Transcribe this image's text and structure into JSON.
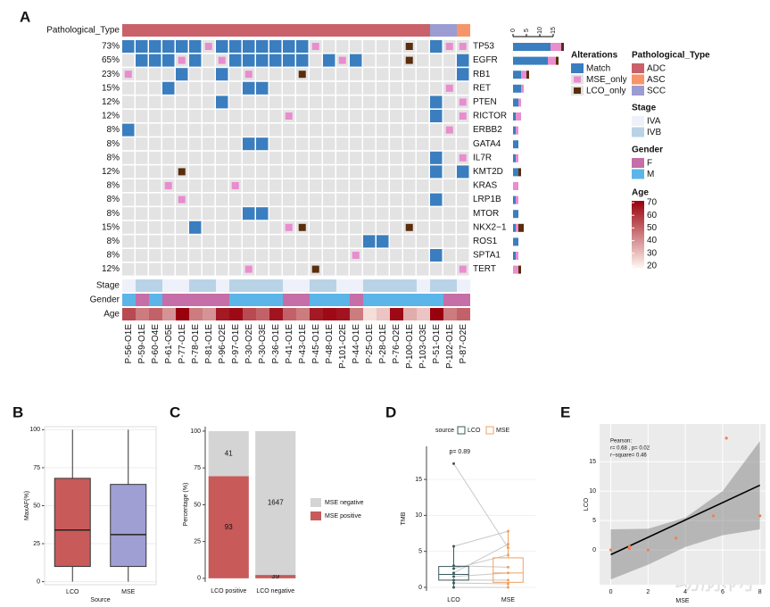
{
  "chart_data": [
    {
      "type": "oncoprint",
      "label": "A",
      "samples": [
        "P-56-O1E",
        "P-59-O1E",
        "P-60-O4E",
        "P-61-O5E",
        "P-77-O1E",
        "P-78-O1E",
        "P-81-O1E",
        "P-96-O2E",
        "P-97-O1E",
        "P-30-O2E",
        "P-30-O3E",
        "P-36-O1E",
        "P-41-O1E",
        "P-43-O1E",
        "P-45-O1E",
        "P-48-O1E",
        "P-101-O2E",
        "P-44-O1E",
        "P-25-O1E",
        "P-28-O1E",
        "P-76-O2E",
        "P-100-O1E",
        "P-103-O3E",
        "P-51-O1E",
        "P-102-O1E",
        "P-87-O2E"
      ],
      "genes": [
        "TP53",
        "EGFR",
        "RB1",
        "RET",
        "PTEN",
        "RICTOR",
        "ERBB2",
        "GATA4",
        "IL7R",
        "KMT2D",
        "KRAS",
        "LRP1B",
        "MTOR",
        "NKX2−1",
        "ROS1",
        "SPTA1",
        "TERT"
      ],
      "percentages": [
        "73%",
        "65%",
        "23%",
        "15%",
        "12%",
        "12%",
        "8%",
        "8%",
        "8%",
        "12%",
        "8%",
        "8%",
        "8%",
        "15%",
        "8%",
        "8%",
        "12%"
      ],
      "legend_title": "Alterations",
      "alteration_types": [
        "Match",
        "MSE_only",
        "LCO_only"
      ],
      "alteration_colors": [
        "#3a7ebf",
        "#e98dcf",
        "#5a2d0c"
      ],
      "matrix": [
        [
          "Match",
          "Match",
          "Match",
          "Match",
          "Match",
          "Match",
          "MSE_only",
          "Match",
          "Match",
          "Match",
          "Match",
          "Match",
          "Match",
          "Match",
          "MSE_only",
          null,
          null,
          null,
          null,
          null,
          null,
          "LCO_only",
          null,
          "Match",
          "MSE_only",
          "MSE_only"
        ],
        [
          null,
          "Match",
          "Match",
          "Match",
          "MSE_only",
          "Match",
          null,
          "MSE_only",
          "Match",
          "Match",
          "Match",
          "Match",
          "Match",
          "Match",
          null,
          "Match",
          "MSE_only",
          "Match",
          null,
          null,
          null,
          "LCO_only",
          null,
          null,
          null,
          "Match"
        ],
        [
          "MSE_only",
          null,
          null,
          null,
          "Match",
          null,
          null,
          "Match",
          null,
          "MSE_only",
          null,
          null,
          null,
          "LCO_only",
          null,
          null,
          null,
          null,
          null,
          null,
          null,
          null,
          null,
          null,
          null,
          "Match"
        ],
        [
          null,
          null,
          null,
          "Match",
          null,
          null,
          null,
          null,
          null,
          "Match",
          "Match",
          null,
          null,
          null,
          null,
          null,
          null,
          null,
          null,
          null,
          null,
          null,
          null,
          null,
          "MSE_only",
          null
        ],
        [
          null,
          null,
          null,
          null,
          null,
          null,
          null,
          "Match",
          null,
          null,
          null,
          null,
          null,
          null,
          null,
          null,
          null,
          null,
          null,
          null,
          null,
          null,
          null,
          "Match",
          null,
          "MSE_only"
        ],
        [
          null,
          null,
          null,
          null,
          null,
          null,
          null,
          null,
          null,
          null,
          null,
          null,
          "MSE_only",
          null,
          null,
          null,
          null,
          null,
          null,
          null,
          null,
          null,
          null,
          "Match",
          null,
          "MSE_only"
        ],
        [
          "Match",
          null,
          null,
          null,
          null,
          null,
          null,
          null,
          null,
          null,
          null,
          null,
          null,
          null,
          null,
          null,
          null,
          null,
          null,
          null,
          null,
          null,
          null,
          null,
          "MSE_only",
          null
        ],
        [
          null,
          null,
          null,
          null,
          null,
          null,
          null,
          null,
          null,
          "Match",
          "Match",
          null,
          null,
          null,
          null,
          null,
          null,
          null,
          null,
          null,
          null,
          null,
          null,
          null,
          null,
          null
        ],
        [
          null,
          null,
          null,
          null,
          null,
          null,
          null,
          null,
          null,
          null,
          null,
          null,
          null,
          null,
          null,
          null,
          null,
          null,
          null,
          null,
          null,
          null,
          null,
          "Match",
          null,
          "MSE_only"
        ],
        [
          null,
          null,
          null,
          null,
          "LCO_only",
          null,
          null,
          null,
          null,
          null,
          null,
          null,
          null,
          null,
          null,
          null,
          null,
          null,
          null,
          null,
          null,
          null,
          null,
          "Match",
          null,
          "Match"
        ],
        [
          null,
          null,
          null,
          "MSE_only",
          null,
          null,
          null,
          null,
          "MSE_only",
          null,
          null,
          null,
          null,
          null,
          null,
          null,
          null,
          null,
          null,
          null,
          null,
          null,
          null,
          null,
          null,
          null
        ],
        [
          null,
          null,
          null,
          null,
          "MSE_only",
          null,
          null,
          null,
          null,
          null,
          null,
          null,
          null,
          null,
          null,
          null,
          null,
          null,
          null,
          null,
          null,
          null,
          null,
          "Match",
          null,
          null
        ],
        [
          null,
          null,
          null,
          null,
          null,
          null,
          null,
          null,
          null,
          "Match",
          "Match",
          null,
          null,
          null,
          null,
          null,
          null,
          null,
          null,
          null,
          null,
          null,
          null,
          null,
          null,
          null
        ],
        [
          null,
          null,
          null,
          null,
          null,
          "Match",
          null,
          null,
          null,
          null,
          null,
          null,
          "MSE_only",
          "LCO_only",
          null,
          null,
          null,
          null,
          null,
          null,
          null,
          "LCO_only",
          null,
          null,
          null,
          null
        ],
        [
          null,
          null,
          null,
          null,
          null,
          null,
          null,
          null,
          null,
          null,
          null,
          null,
          null,
          null,
          null,
          null,
          null,
          null,
          "Match",
          "Match",
          null,
          null,
          null,
          null,
          null,
          null
        ],
        [
          null,
          null,
          null,
          null,
          null,
          null,
          null,
          null,
          null,
          null,
          null,
          null,
          null,
          null,
          null,
          null,
          null,
          "MSE_only",
          null,
          null,
          null,
          null,
          null,
          "Match",
          null,
          null
        ],
        [
          null,
          null,
          null,
          null,
          null,
          null,
          null,
          null,
          null,
          "MSE_only",
          null,
          null,
          null,
          null,
          "LCO_only",
          null,
          null,
          null,
          null,
          null,
          null,
          null,
          null,
          null,
          null,
          "MSE_only"
        ]
      ],
      "xticks": [
        0,
        5,
        10,
        15
      ],
      "tracks": [
        {
          "name": "Pathological_Type",
          "levels": [
            "ADC",
            "ASC",
            "SCC"
          ],
          "colors": [
            "#c9616a",
            "#f7956a",
            "#9b9cd1"
          ],
          "values": [
            "ADC",
            "ADC",
            "ADC",
            "ADC",
            "ADC",
            "ADC",
            "ADC",
            "ADC",
            "ADC",
            "ADC",
            "ADC",
            "ADC",
            "ADC",
            "ADC",
            "ADC",
            "ADC",
            "ADC",
            "ADC",
            "ADC",
            "ADC",
            "ADC",
            "ADC",
            "ADC",
            "SCC",
            "SCC",
            "ASC"
          ]
        },
        {
          "name": "Stage",
          "levels": [
            "IVA",
            "IVB"
          ],
          "colors": [
            "#eef0fa",
            "#b9d3e6"
          ],
          "values": [
            "IVA",
            "IVB",
            "IVB",
            "IVA",
            "IVA",
            "IVB",
            "IVB",
            "IVA",
            "IVB",
            "IVB",
            "IVB",
            "IVB",
            "IVA",
            "IVA",
            "IVB",
            "IVB",
            "IVA",
            "IVA",
            "IVB",
            "IVB",
            "IVB",
            "IVB",
            "IVA",
            "IVB",
            "IVB",
            "IVA"
          ]
        },
        {
          "name": "Gender",
          "levels": [
            "F",
            "M"
          ],
          "colors": [
            "#c56ea7",
            "#5bb5e8"
          ],
          "values": [
            "M",
            "F",
            "M",
            "F",
            "F",
            "F",
            "F",
            "F",
            "M",
            "M",
            "M",
            "M",
            "F",
            "F",
            "M",
            "M",
            "M",
            "F",
            "M",
            "M",
            "M",
            "M",
            "M",
            "M",
            "F",
            "F"
          ]
        }
      ],
      "age": {
        "name": "Age",
        "values": [
          55,
          45,
          50,
          40,
          70,
          45,
          40,
          65,
          68,
          55,
          50,
          66,
          50,
          45,
          65,
          68,
          66,
          45,
          25,
          30,
          68,
          35,
          30,
          70,
          45,
          50
        ],
        "range": [
          20,
          70
        ],
        "ticks": [
          70,
          60,
          50,
          40,
          30,
          20
        ],
        "colors": [
          "#fff5f0",
          "#99000d"
        ]
      }
    },
    {
      "type": "box",
      "label": "B",
      "x_label": "Source",
      "y_label": "MaxAF(%)",
      "categories": [
        "LCO",
        "MSE"
      ],
      "boxes": [
        {
          "color": "#c85a5a",
          "min": 0,
          "q1": 10,
          "median": 34,
          "q3": 68,
          "max": 100
        },
        {
          "color": "#9f9fd4",
          "min": 0,
          "q1": 10,
          "median": 31,
          "q3": 64,
          "max": 100
        }
      ],
      "ylim": [
        -2,
        102
      ],
      "yticks": [
        0,
        25,
        50,
        75,
        100
      ]
    },
    {
      "type": "percent_stacked_bar",
      "label": "C",
      "y_label": "Percentage (%)",
      "categories": [
        "LCO positive",
        "LCO negative"
      ],
      "series": [
        {
          "name": "MSE negative",
          "color": "#d4d4d4",
          "values": [
            41,
            1647
          ]
        },
        {
          "name": "MSE positive",
          "color": "#c85a5a",
          "values": [
            93,
            39
          ]
        }
      ],
      "ylim": [
        -2.5,
        103
      ],
      "yticks": [
        0,
        25,
        50,
        75,
        100
      ]
    },
    {
      "type": "paired_box",
      "label": "D",
      "legend_title": "source",
      "y_label": "TMB",
      "categories": [
        "LCO",
        "MSE"
      ],
      "colors": [
        "#3d5a5e",
        "#f0a060"
      ],
      "series": [
        {
          "name": "LCO",
          "values": [
            17.2,
            5.7,
            3,
            2.6,
            2,
            1.5,
            1,
            0.6,
            0
          ]
        },
        {
          "name": "MSE",
          "values": [
            5.5,
            7.8,
            2.8,
            4.5,
            6,
            2,
            1,
            0.5,
            0
          ]
        }
      ],
      "boxes": [
        {
          "min": 0,
          "q1": 1,
          "median": 1.8,
          "q3": 2.9,
          "max": 5.7
        },
        {
          "min": 0,
          "q1": 0.7,
          "median": 2,
          "q3": 4.1,
          "max": 8
        }
      ],
      "annotation": "p= 0.89",
      "ylim": [
        -0.5,
        19.6
      ],
      "yticks": [
        0,
        5,
        10,
        15
      ]
    },
    {
      "type": "scatter",
      "label": "E",
      "x_label": "MSE",
      "y_label": "LCO",
      "x": [
        0,
        1,
        1,
        2,
        3.5,
        5.5,
        6.2,
        8
      ],
      "values": [
        0,
        0.6,
        0.2,
        0,
        2,
        5.8,
        19,
        5.8
      ],
      "color": "#f08050",
      "fit": {
        "x": [
          0,
          8
        ],
        "y": [
          -0.8,
          11
        ]
      },
      "band": {
        "x": [
          0,
          2,
          4,
          6,
          8
        ],
        "lower": [
          -5,
          -2.5,
          0.5,
          2.5,
          3.5
        ],
        "upper": [
          3.5,
          3.6,
          5.5,
          10,
          18.5
        ]
      },
      "annotations": [
        "Pearson:",
        "r= 0.68 , p= 0.02",
        "r−square= 0.46"
      ],
      "xlim": [
        -0.6,
        8.3
      ],
      "xticks": [
        0,
        2,
        4,
        6,
        8
      ],
      "ylim": [
        -5.9,
        21.4
      ],
      "yticks": [
        0,
        5,
        10,
        15
      ]
    }
  ],
  "watermark": "动脉网"
}
